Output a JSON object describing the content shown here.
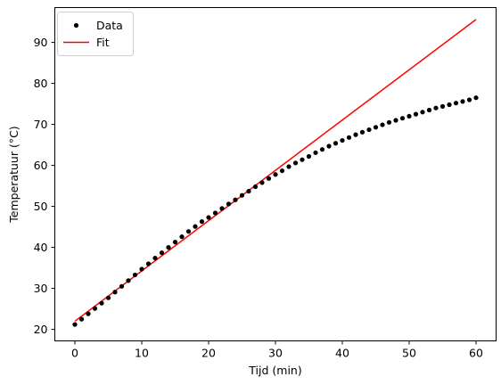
{
  "chart_data": {
    "type": "line",
    "xlabel": "Tijd (min)",
    "ylabel": "Temperatuur (°C)",
    "xlim": [
      -3,
      63
    ],
    "ylim": [
      17.2,
      98.5
    ],
    "xticks": [
      0,
      10,
      20,
      30,
      40,
      50,
      60
    ],
    "yticks": [
      20,
      30,
      40,
      50,
      60,
      70,
      80,
      90
    ],
    "grid": false,
    "legend_position": "top-left",
    "series": [
      {
        "name": "Data",
        "style": "markers",
        "color": "#000000",
        "x": [
          0,
          1,
          2,
          3,
          4,
          5,
          6,
          7,
          8,
          9,
          10,
          11,
          12,
          13,
          14,
          15,
          16,
          17,
          18,
          19,
          20,
          21,
          22,
          23,
          24,
          25,
          26,
          27,
          28,
          29,
          30,
          31,
          32,
          33,
          34,
          35,
          36,
          37,
          38,
          39,
          40,
          41,
          42,
          43,
          44,
          45,
          46,
          47,
          48,
          49,
          50,
          51,
          52,
          53,
          54,
          55,
          56,
          57,
          58,
          59,
          60
        ],
        "y": [
          21.2,
          22.5,
          23.8,
          25.1,
          26.4,
          27.7,
          29.1,
          30.5,
          31.9,
          33.3,
          34.7,
          36.0,
          37.4,
          38.7,
          40.0,
          41.3,
          42.6,
          43.9,
          45.1,
          46.3,
          47.3,
          48.4,
          49.5,
          50.6,
          51.6,
          52.7,
          53.7,
          54.8,
          55.8,
          56.8,
          57.8,
          58.7,
          59.7,
          60.6,
          61.4,
          62.2,
          63.1,
          63.9,
          64.7,
          65.4,
          66.1,
          66.8,
          67.5,
          68.1,
          68.7,
          69.3,
          69.9,
          70.5,
          71.0,
          71.5,
          72.0,
          72.5,
          73.0,
          73.5,
          74.0,
          74.4,
          74.8,
          75.2,
          75.6,
          76.0,
          76.5
        ]
      },
      {
        "name": "Fit",
        "style": "line",
        "color": "#ff0000",
        "x": [
          0,
          60
        ],
        "y": [
          22.0,
          95.6
        ]
      }
    ]
  }
}
